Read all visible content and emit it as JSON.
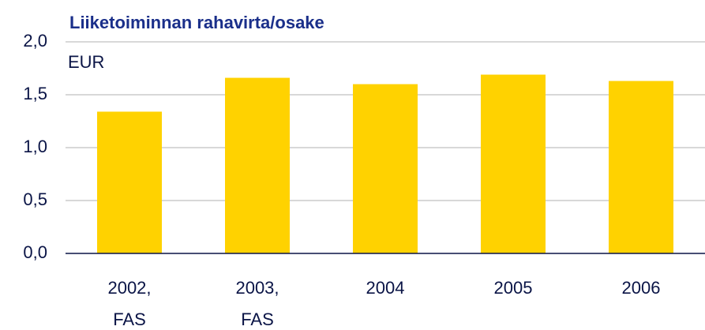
{
  "chart_data": {
    "type": "bar",
    "title": "Liiketoiminnan rahavirta/osake",
    "unit_label": "EUR",
    "categories": [
      "2002, FAS",
      "2003, FAS",
      "2004",
      "2005",
      "2006"
    ],
    "values": [
      1.34,
      1.66,
      1.6,
      1.69,
      1.63
    ],
    "color": "#ffd200",
    "ylim": [
      0,
      2
    ],
    "yticks": [
      {
        "value": 0,
        "label": "0,0"
      },
      {
        "value": 0.5,
        "label": "0,5"
      },
      {
        "value": 1,
        "label": "1,0"
      },
      {
        "value": 1.5,
        "label": "1,5"
      },
      {
        "value": 2,
        "label": "2,0"
      }
    ],
    "grid": true
  }
}
